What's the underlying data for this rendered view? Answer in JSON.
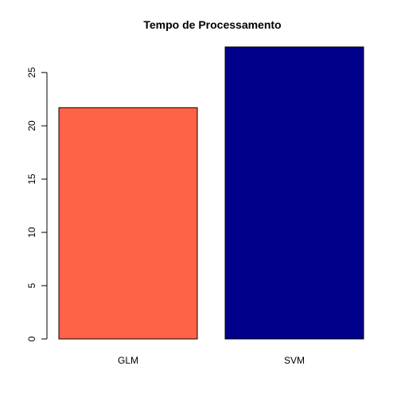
{
  "chart_data": {
    "type": "bar",
    "title": "Tempo de Processamento",
    "xlabel": "",
    "ylabel": "",
    "categories": [
      "GLM",
      "SVM"
    ],
    "values": [
      21.7,
      27.4
    ],
    "colors": [
      "#FF6347",
      "#00008B"
    ],
    "ylim": [
      0,
      27.4
    ],
    "yticks": [
      0,
      5,
      10,
      15,
      20,
      25
    ],
    "ytick_labels": [
      "0",
      "5",
      "10",
      "15",
      "20",
      "25"
    ],
    "grid": false,
    "legend": "none"
  }
}
